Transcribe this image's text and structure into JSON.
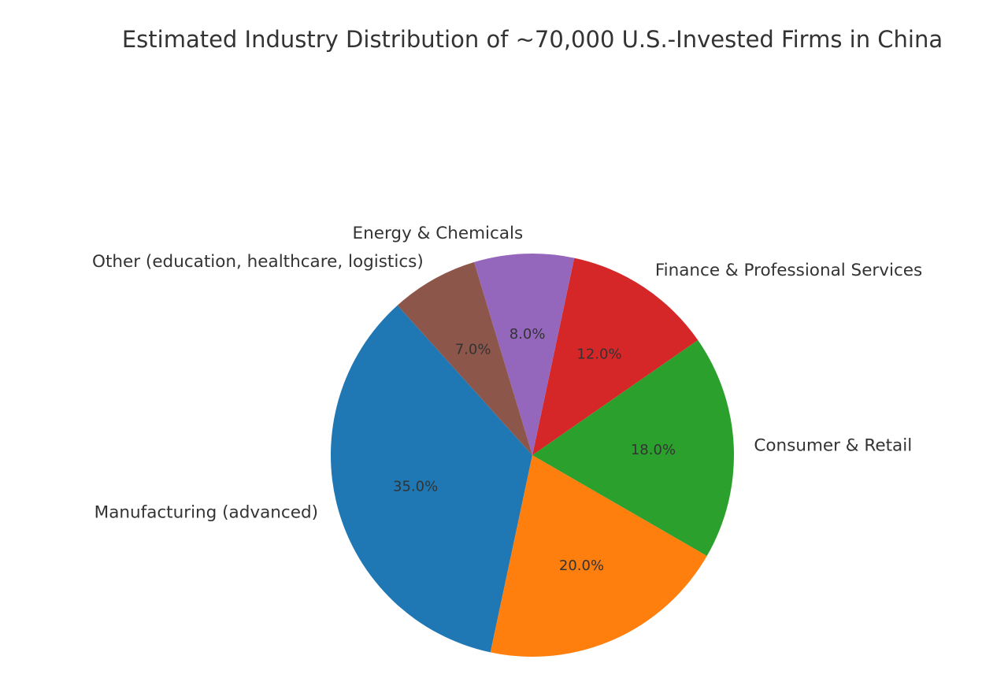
{
  "chart_data": {
    "type": "pie",
    "title": "Estimated Industry Distribution of ~70,000 U.S.-Invested Firms in China",
    "legend": "none",
    "start_angle_deg": 132,
    "direction": "counterclockwise",
    "slices": [
      {
        "label": "Manufacturing (advanced)",
        "value": 35.0,
        "pct_label": "35.0%",
        "color": "#1f77b4"
      },
      {
        "label": "",
        "value": 20.0,
        "pct_label": "20.0%",
        "color": "#ff7f0e"
      },
      {
        "label": "Consumer & Retail",
        "value": 18.0,
        "pct_label": "18.0%",
        "color": "#2ca02c"
      },
      {
        "label": "Finance & Professional Services",
        "value": 12.0,
        "pct_label": "12.0%",
        "color": "#d62728"
      },
      {
        "label": "Energy & Chemicals",
        "value": 8.0,
        "pct_label": "8.0%",
        "color": "#9467bd"
      },
      {
        "label": "Other (education, healthcare, logistics)",
        "value": 7.0,
        "pct_label": "7.0%",
        "color": "#8c564b"
      }
    ]
  }
}
